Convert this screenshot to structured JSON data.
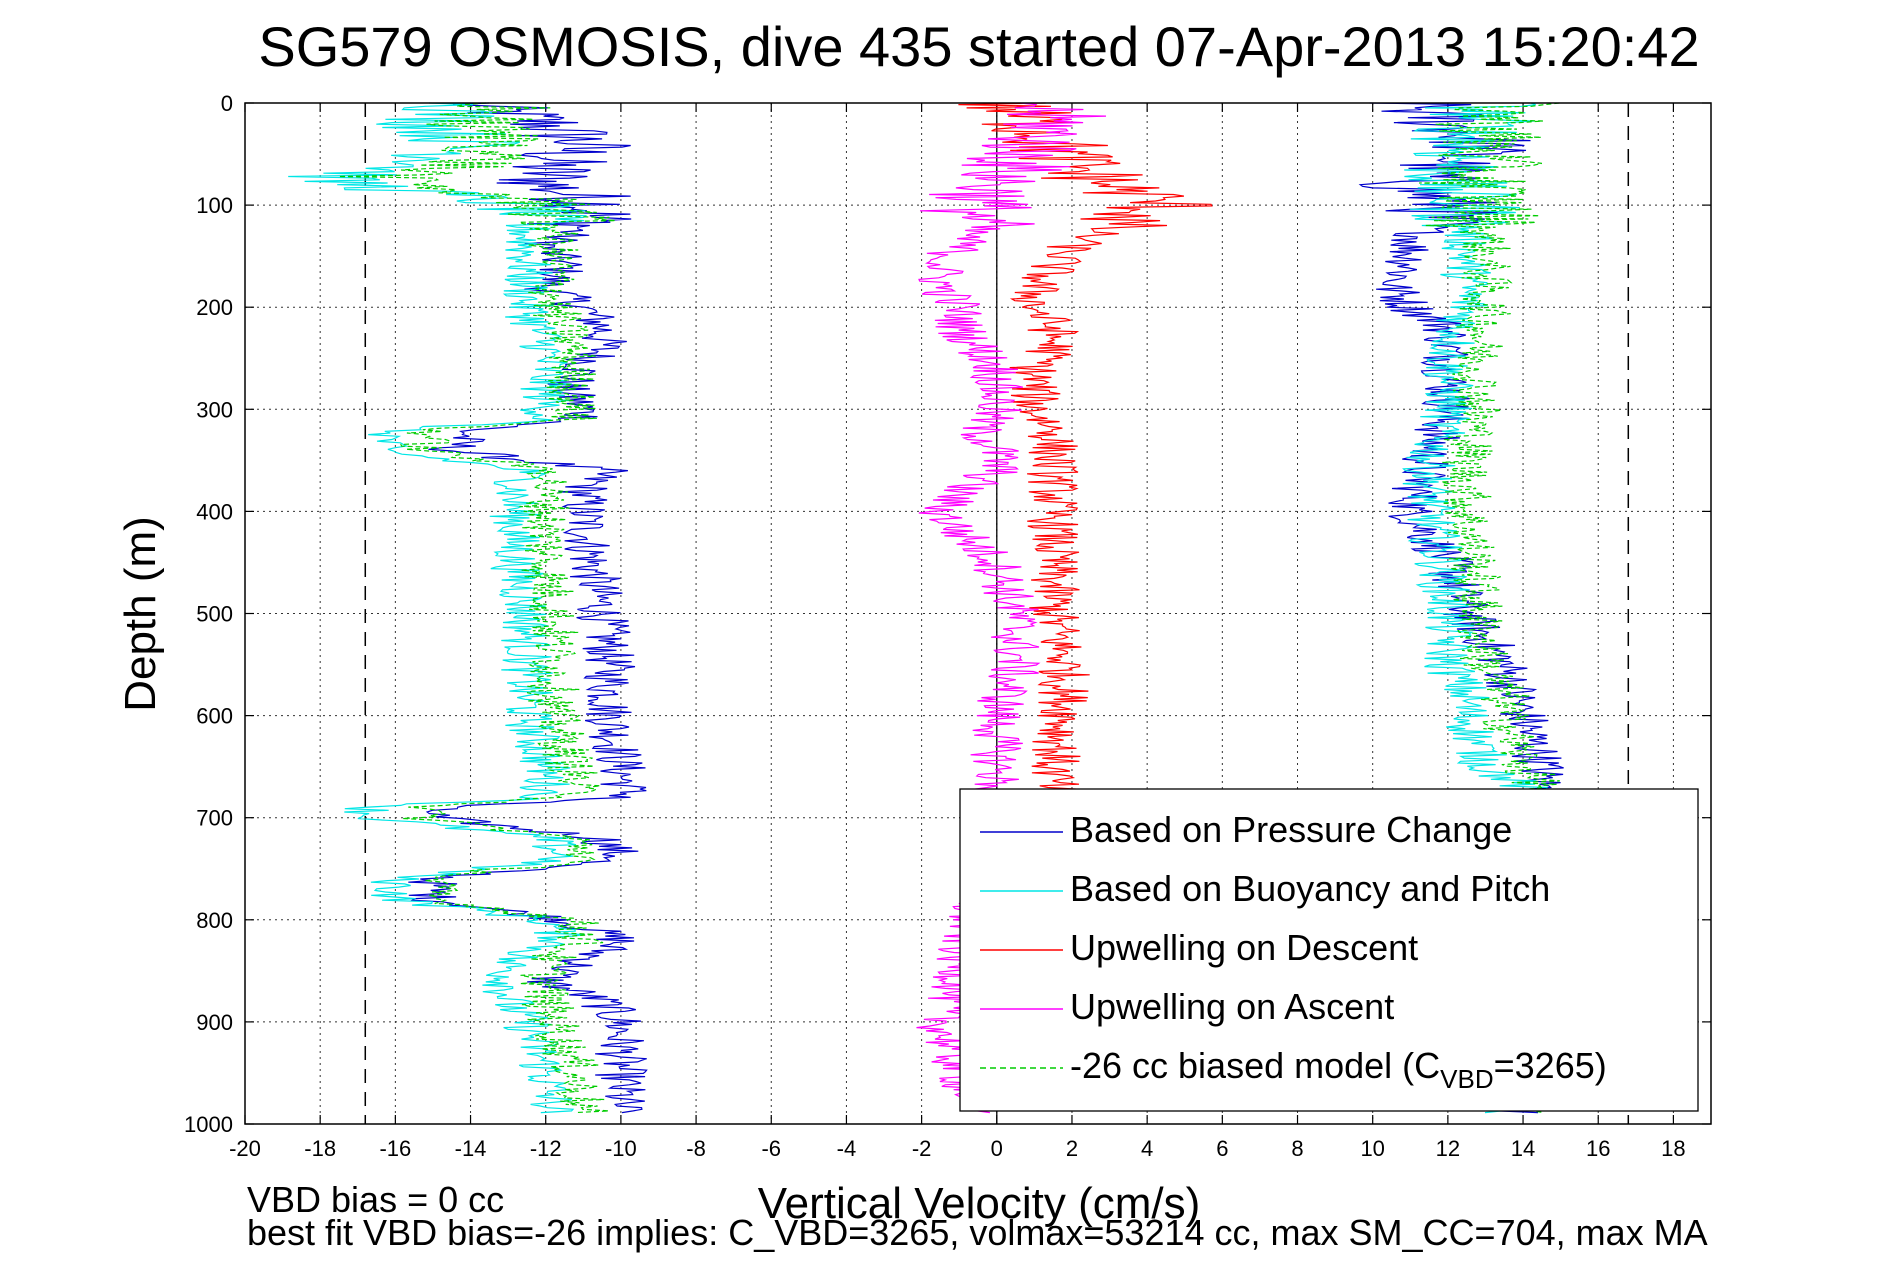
{
  "chart_data": {
    "type": "line",
    "title": "SG579 OSMOSIS, dive 435 started 07-Apr-2013 15:20:42",
    "xlabel": "Vertical Velocity (cm/s)",
    "ylabel": "Depth (m)",
    "xlim": [
      -20,
      19
    ],
    "ylim": [
      0,
      1000
    ],
    "y_reversed": true,
    "grid": true,
    "x_ticks": [
      -20,
      -18,
      -16,
      -14,
      -12,
      -10,
      -8,
      -6,
      -4,
      -2,
      0,
      2,
      4,
      6,
      8,
      10,
      12,
      14,
      16,
      18
    ],
    "y_ticks": [
      0,
      100,
      200,
      300,
      400,
      500,
      600,
      700,
      800,
      900,
      1000
    ],
    "dashed_limits": [
      -16.8,
      16.8
    ],
    "zero_line": 0,
    "legend_position": "bottom-right",
    "footnote_line1": "VBD bias = 0 cc",
    "footnote_line2": "best fit VBD bias=-26 implies: C_VBD=3265, volmax=53214 cc, max SM_CC=704, max MA",
    "series": [
      {
        "name": "Based on Pressure Change",
        "color": "#0000cc",
        "style": "solid",
        "segments": [
          {
            "depth": [
              0,
              20,
              40,
              60,
              80,
              100,
              120,
              140,
              160,
              180,
              200,
              220,
              240,
              260,
              280,
              300,
              310,
              320,
              340,
              360,
              380,
              400,
              450,
              500,
              550,
              600,
              650,
              680,
              690,
              700,
              720,
              740,
              760,
              780,
              800,
              820,
              840,
              860,
              880,
              900,
              950,
              990
            ],
            "v": [
              -14,
              -12,
              -11,
              -12,
              -12,
              -10.5,
              -11,
              -12,
              -11.5,
              -12,
              -11,
              -10.5,
              -10.5,
              -11,
              -11.5,
              -11,
              -11,
              -14,
              -14.5,
              -10.5,
              -11,
              -11,
              -10.8,
              -10.5,
              -10.3,
              -10.3,
              -10,
              -9.8,
              -15,
              -15,
              -10.5,
              -10,
              -15,
              -15,
              -11.5,
              -10,
              -11,
              -12,
              -10.5,
              -10,
              -10,
              -10
            ]
          },
          {
            "depth": [
              0,
              20,
              40,
              60,
              80,
              100,
              120,
              140,
              160,
              180,
              200,
              220,
              240,
              260,
              280,
              300,
              340,
              400,
              450,
              500,
              550,
              600,
              650,
              670,
              990
            ],
            "v": [
              11,
              12,
              13,
              12,
              11,
              12,
              11.5,
              11,
              11,
              10.5,
              11,
              12,
              12,
              12,
              12,
              12,
              11.5,
              11,
              12,
              12.5,
              13.5,
              14,
              14.5,
              14.5,
              14
            ]
          }
        ]
      },
      {
        "name": "Based on Buoyancy and Pitch",
        "color": "#00e6e6",
        "style": "solid",
        "segments": [
          {
            "depth": [
              0,
              20,
              40,
              60,
              75,
              100,
              120,
              160,
              200,
              240,
              280,
              310,
              320,
              340,
              360,
              380,
              400,
              450,
              500,
              550,
              580,
              600,
              650,
              680,
              690,
              700,
              720,
              740,
              760,
              780,
              800,
              820,
              840,
              860,
              880,
              900,
              950,
              990
            ],
            "v": [
              -14,
              -15,
              -14,
              -15,
              -18,
              -12.5,
              -12.5,
              -12.5,
              -12.5,
              -12,
              -12,
              -12,
              -16,
              -16.5,
              -12.5,
              -12.8,
              -12.8,
              -12.8,
              -12.5,
              -12.5,
              -12.5,
              -12.5,
              -12,
              -12,
              -16.7,
              -16.7,
              -12,
              -11.5,
              -16,
              -16,
              -12,
              -11.5,
              -13,
              -13,
              -13,
              -12.5,
              -12,
              -11.8
            ]
          },
          {
            "depth": [
              0,
              40,
              80,
              100,
              150,
              200,
              250,
              300,
              350,
              400,
              450,
              500,
              550,
              580,
              600,
              650,
              670,
              990
            ],
            "v": [
              13,
              12.5,
              12,
              12.5,
              12.5,
              12.5,
              12,
              12,
              11.5,
              11.5,
              11.8,
              12,
              12,
              12.5,
              12.5,
              13,
              14,
              13.5
            ]
          }
        ]
      },
      {
        "name": "Upwelling on Descent",
        "color": "#ff0000",
        "style": "solid",
        "segments": [
          {
            "depth": [
              0,
              20,
              40,
              60,
              80,
              100,
              120,
              140,
              160,
              180,
              200,
              220,
              240,
              260,
              280,
              300,
              320,
              340,
              360,
              380,
              400,
              450,
              500,
              550,
              600,
              650,
              680
            ],
            "v": [
              0,
              1,
              1.5,
              2,
              3,
              4.5,
              3,
              2,
              1.5,
              1,
              1,
              1.5,
              1.5,
              1,
              1,
              1,
              1.5,
              1.5,
              1.5,
              1.5,
              1.5,
              1.5,
              1.5,
              1.8,
              1.8,
              1.5,
              1.5
            ]
          }
        ]
      },
      {
        "name": "Upwelling on Ascent",
        "color": "#ff00ff",
        "style": "solid",
        "segments": [
          {
            "depth": [
              0,
              20,
              40,
              60,
              80,
              100,
              120,
              140,
              160,
              180,
              200,
              220,
              240,
              260,
              280,
              300,
              320,
              340,
              360,
              380,
              400,
              420,
              450,
              500,
              550,
              600,
              650,
              680,
              840,
              860,
              900,
              950,
              990
            ],
            "v": [
              1,
              1.5,
              1,
              0.5,
              0,
              -0.5,
              -0.5,
              -1,
              -1.5,
              -1.5,
              -1,
              -1,
              -0.5,
              0,
              0,
              0,
              -0.5,
              0,
              0,
              -1,
              -1.5,
              -1,
              0,
              0.5,
              0.5,
              0,
              0,
              0,
              -1,
              -1,
              -1.5,
              -1,
              -0.5
            ]
          }
        ]
      },
      {
        "name": "-26 cc biased model (C",
        "name_sub": "VBD",
        "name_suffix": "=3265)",
        "color": "#00cc00",
        "style": "dashed",
        "segments": [
          {
            "depth": [
              0,
              20,
              40,
              60,
              75,
              100,
              120,
              160,
              200,
              240,
              280,
              310,
              320,
              340,
              360,
              380,
              400,
              450,
              500,
              550,
              580,
              600,
              650,
              680,
              690,
              700,
              720,
              740,
              760,
              780,
              800,
              820,
              840,
              860,
              880,
              900,
              950,
              990
            ],
            "v": [
              -13,
              -14,
              -13,
              -14,
              -16.5,
              -11.5,
              -11.8,
              -11.8,
              -11.8,
              -11.3,
              -11.3,
              -11.3,
              -15,
              -15.3,
              -11.8,
              -12,
              -12,
              -12,
              -11.8,
              -11.8,
              -11.8,
              -11.8,
              -11.3,
              -11.2,
              -15.3,
              -15.3,
              -11.3,
              -10.8,
              -15,
              -15,
              -11.3,
              -11,
              -12,
              -12,
              -12,
              -11.8,
              -11.2,
              -11
            ]
          },
          {
            "depth": [
              0,
              40,
              80,
              100,
              150,
              200,
              250,
              300,
              350,
              400,
              450,
              500,
              550,
              580,
              600,
              650,
              670,
              990
            ],
            "v": [
              13.5,
              13,
              12.8,
              13,
              13,
              13,
              12.8,
              12.8,
              12.5,
              12.5,
              12.7,
              12.8,
              13,
              13.5,
              13.5,
              14,
              14.5,
              14
            ]
          }
        ]
      }
    ]
  }
}
